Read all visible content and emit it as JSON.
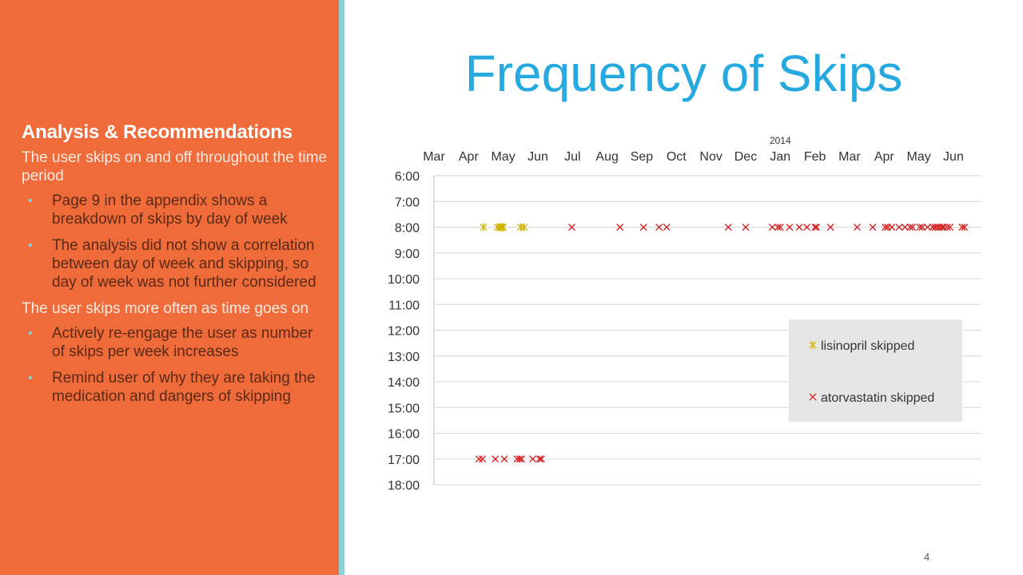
{
  "sidebar": {
    "heading": "Analysis & Recommendations",
    "para1": "The user skips on and off throughout the time period",
    "bullets1": [
      "Page 9 in the appendix shows a breakdown of skips by day of week",
      "The analysis did not show a correlation between day of week and skipping, so day of week was not further considered"
    ],
    "para2": "The user skips more often as time goes on",
    "bullets2": [
      "Actively re-engage the user as number of skips per week increases",
      "Remind user of why they are taking the medication and dangers of skipping"
    ]
  },
  "title": "Frequency of Skips",
  "page_number": "4",
  "colors": {
    "panel": "#ef6c3a",
    "divider": "#8fcfd9",
    "title": "#25a9df",
    "lisinopril": "#d4b400",
    "atorvastatin": "#d62020"
  },
  "chart_data": {
    "type": "scatter",
    "x_axis": {
      "position": "top",
      "year_label": "2014",
      "year_label_at_tick": 10,
      "ticks": [
        "Mar",
        "Apr",
        "May",
        "Jun",
        "Jul",
        "Aug",
        "Sep",
        "Oct",
        "Nov",
        "Dec",
        "Jan",
        "Feb",
        "Mar",
        "Apr",
        "May",
        "Jun"
      ]
    },
    "y_axis": {
      "reversed": true,
      "range": [
        6,
        18
      ],
      "ticks": [
        "6:00",
        "7:00",
        "8:00",
        "9:00",
        "10:00",
        "11:00",
        "12:00",
        "13:00",
        "14:00",
        "15:00",
        "16:00",
        "17:00",
        "18:00"
      ]
    },
    "grid": "horizontal",
    "legend": {
      "placement": "right-middle"
    },
    "series": [
      {
        "name": "lisinopril skipped",
        "marker": "x-star",
        "points": [
          {
            "x": 1.43,
            "y": 8
          },
          {
            "x": 1.83,
            "y": 8
          },
          {
            "x": 1.9,
            "y": 8
          },
          {
            "x": 1.93,
            "y": 8
          },
          {
            "x": 1.97,
            "y": 8
          },
          {
            "x": 2.0,
            "y": 8
          },
          {
            "x": 2.5,
            "y": 8
          },
          {
            "x": 2.6,
            "y": 8
          }
        ]
      },
      {
        "name": "atorvastatin skipped",
        "marker": "x",
        "points": [
          {
            "x": 3.98,
            "y": 8
          },
          {
            "x": 5.37,
            "y": 8
          },
          {
            "x": 6.05,
            "y": 8
          },
          {
            "x": 6.5,
            "y": 8
          },
          {
            "x": 6.72,
            "y": 8
          },
          {
            "x": 8.5,
            "y": 8
          },
          {
            "x": 9.0,
            "y": 8
          },
          {
            "x": 9.77,
            "y": 8
          },
          {
            "x": 9.93,
            "y": 8
          },
          {
            "x": 10.0,
            "y": 8
          },
          {
            "x": 10.27,
            "y": 8
          },
          {
            "x": 10.55,
            "y": 8
          },
          {
            "x": 10.77,
            "y": 8
          },
          {
            "x": 11.0,
            "y": 8
          },
          {
            "x": 11.05,
            "y": 8
          },
          {
            "x": 11.45,
            "y": 8
          },
          {
            "x": 12.22,
            "y": 8
          },
          {
            "x": 12.67,
            "y": 8
          },
          {
            "x": 13.03,
            "y": 8
          },
          {
            "x": 13.1,
            "y": 8
          },
          {
            "x": 13.22,
            "y": 8
          },
          {
            "x": 13.43,
            "y": 8
          },
          {
            "x": 13.6,
            "y": 8
          },
          {
            "x": 13.75,
            "y": 8
          },
          {
            "x": 13.82,
            "y": 8
          },
          {
            "x": 14.03,
            "y": 8
          },
          {
            "x": 14.1,
            "y": 8
          },
          {
            "x": 14.25,
            "y": 8
          },
          {
            "x": 14.4,
            "y": 8
          },
          {
            "x": 14.47,
            "y": 8
          },
          {
            "x": 14.53,
            "y": 8
          },
          {
            "x": 14.6,
            "y": 8
          },
          {
            "x": 14.67,
            "y": 8
          },
          {
            "x": 14.72,
            "y": 8
          },
          {
            "x": 14.82,
            "y": 8
          },
          {
            "x": 14.9,
            "y": 8
          },
          {
            "x": 15.25,
            "y": 8
          },
          {
            "x": 15.32,
            "y": 8
          },
          {
            "x": 1.3,
            "y": 17
          },
          {
            "x": 1.4,
            "y": 17
          },
          {
            "x": 1.77,
            "y": 17
          },
          {
            "x": 2.03,
            "y": 17
          },
          {
            "x": 2.4,
            "y": 17
          },
          {
            "x": 2.47,
            "y": 17
          },
          {
            "x": 2.53,
            "y": 17
          },
          {
            "x": 2.85,
            "y": 17
          },
          {
            "x": 3.05,
            "y": 17
          },
          {
            "x": 3.1,
            "y": 17
          }
        ]
      }
    ]
  }
}
